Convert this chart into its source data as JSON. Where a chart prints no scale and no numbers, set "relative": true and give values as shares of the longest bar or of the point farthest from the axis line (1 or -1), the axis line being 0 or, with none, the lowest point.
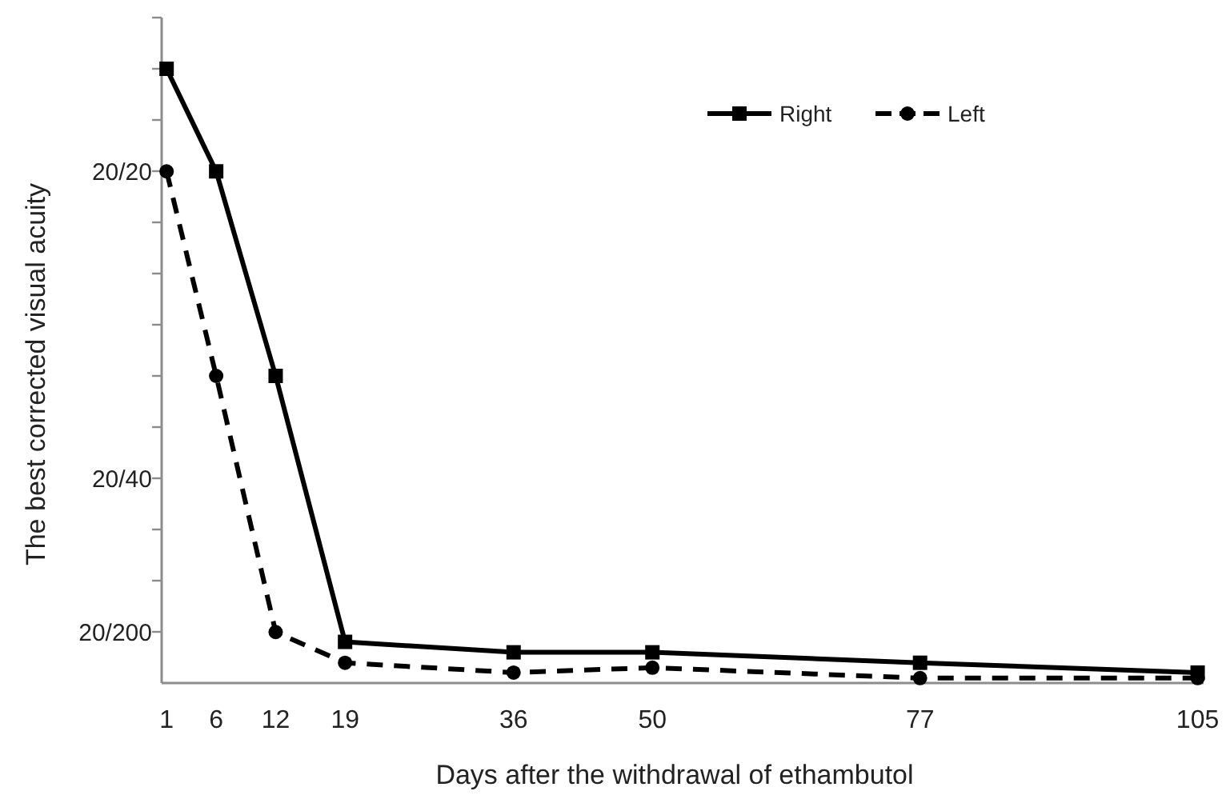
{
  "chart_data": {
    "type": "line",
    "xlabel": "Days after the withdrawal of ethambutol",
    "ylabel": "The best corrected visual acuity",
    "x": [
      1,
      6,
      12,
      19,
      36,
      50,
      77,
      105
    ],
    "relative": true,
    "series": [
      {
        "name": "Right",
        "color": "#000000",
        "marker": "square",
        "line_style": "solid",
        "values": [
          1,
          0.833,
          0.5,
          0.067,
          0.05,
          0.05,
          0.033,
          0.017
        ]
      },
      {
        "name": "Left",
        "color": "#000000",
        "marker": "circle",
        "line_style": "dashed",
        "values": [
          0.833,
          0.5,
          0.083,
          0.033,
          0.017,
          0.025,
          0.008,
          0.008
        ]
      }
    ],
    "xlim": [
      0.5,
      105.6
    ],
    "xticks": [
      1,
      6,
      12,
      19,
      36,
      50,
      77,
      105
    ],
    "annotations": [
      "20/20",
      "20/40",
      "20/200"
    ],
    "legend": "top right"
  }
}
